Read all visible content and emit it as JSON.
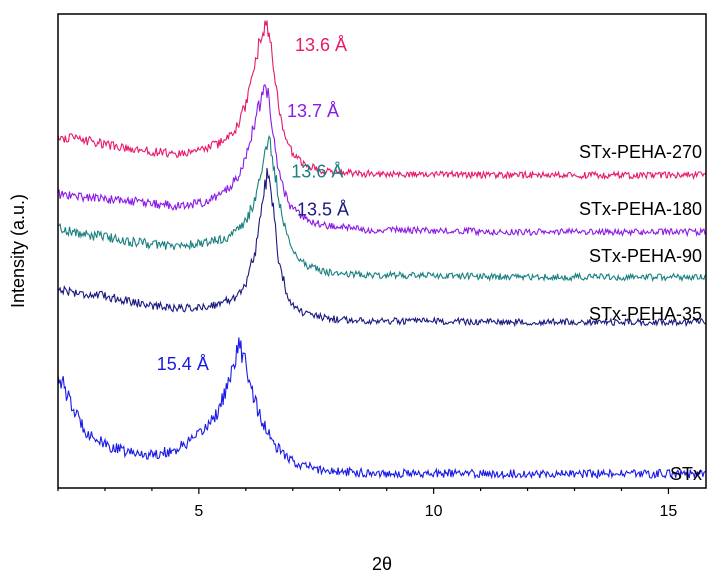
{
  "chart_data": {
    "type": "line",
    "title": "",
    "xlabel": "2θ",
    "ylabel": "Intensity (a.u.)",
    "xlim": [
      2.0,
      15.8
    ],
    "ylim": [
      0,
      100
    ],
    "x_ticks": [
      5,
      10,
      15
    ],
    "grid": false,
    "legend": "none",
    "series": [
      {
        "name": "STx",
        "color": "#1a1ae6",
        "baseline": 3.0,
        "noise": 0.9,
        "points": [
          [
            2.0,
            24
          ],
          [
            2.1,
            22
          ],
          [
            2.3,
            17
          ],
          [
            2.6,
            12
          ],
          [
            3.0,
            9
          ],
          [
            3.5,
            7.5
          ],
          [
            4.0,
            7
          ],
          [
            4.5,
            8
          ],
          [
            5.0,
            11
          ],
          [
            5.4,
            16
          ],
          [
            5.7,
            24
          ],
          [
            5.85,
            30
          ],
          [
            5.95,
            28
          ],
          [
            6.1,
            22
          ],
          [
            6.3,
            15
          ],
          [
            6.6,
            9
          ],
          [
            7.0,
            5.5
          ],
          [
            7.5,
            4
          ],
          [
            8.0,
            3.4
          ],
          [
            9.0,
            3.1
          ],
          [
            12.0,
            3.0
          ],
          [
            15.8,
            3.0
          ]
        ],
        "peak_label": "15.4 Å"
      },
      {
        "name": "STx-PEHA-35",
        "color": "#1a1a80",
        "baseline": 35.0,
        "noise": 0.7,
        "points": [
          [
            2.0,
            42
          ],
          [
            2.5,
            41
          ],
          [
            3.0,
            40.5
          ],
          [
            3.5,
            39.5
          ],
          [
            4.0,
            38.5
          ],
          [
            4.5,
            38
          ],
          [
            5.0,
            38
          ],
          [
            5.5,
            39
          ],
          [
            5.8,
            40.5
          ],
          [
            6.0,
            43
          ],
          [
            6.2,
            50
          ],
          [
            6.35,
            60
          ],
          [
            6.45,
            66
          ],
          [
            6.55,
            62
          ],
          [
            6.7,
            48
          ],
          [
            6.9,
            40
          ],
          [
            7.2,
            37
          ],
          [
            7.6,
            36
          ],
          [
            8.0,
            35.5
          ],
          [
            9.0,
            35.2
          ],
          [
            12.0,
            35.0
          ],
          [
            15.8,
            35.0
          ]
        ],
        "peak_label": "13.5 Å"
      },
      {
        "name": "STx-PEHA-90",
        "color": "#1a8080",
        "baseline": 44.5,
        "noise": 0.7,
        "points": [
          [
            2.0,
            55
          ],
          [
            2.5,
            53.5
          ],
          [
            3.0,
            53
          ],
          [
            3.5,
            52
          ],
          [
            4.0,
            51.5
          ],
          [
            4.5,
            51
          ],
          [
            5.0,
            51.5
          ],
          [
            5.5,
            52.5
          ],
          [
            5.8,
            54
          ],
          [
            6.0,
            56
          ],
          [
            6.2,
            61
          ],
          [
            6.35,
            68
          ],
          [
            6.5,
            73
          ],
          [
            6.6,
            68
          ],
          [
            6.75,
            58
          ],
          [
            7.0,
            50
          ],
          [
            7.3,
            47
          ],
          [
            7.7,
            45.5
          ],
          [
            8.5,
            45
          ],
          [
            12.0,
            44.5
          ],
          [
            15.8,
            44.5
          ]
        ],
        "peak_label": "13.6 Å"
      },
      {
        "name": "STx-PEHA-180",
        "color": "#8c1ae6",
        "baseline": 54.0,
        "noise": 0.7,
        "points": [
          [
            2.0,
            62
          ],
          [
            2.5,
            61.5
          ],
          [
            3.0,
            61
          ],
          [
            3.5,
            60.5
          ],
          [
            4.0,
            60
          ],
          [
            4.5,
            59.5
          ],
          [
            5.0,
            60
          ],
          [
            5.5,
            62
          ],
          [
            5.8,
            65
          ],
          [
            6.0,
            70
          ],
          [
            6.2,
            78
          ],
          [
            6.35,
            83
          ],
          [
            6.45,
            84
          ],
          [
            6.55,
            78
          ],
          [
            6.7,
            67
          ],
          [
            6.9,
            60
          ],
          [
            7.2,
            57
          ],
          [
            7.6,
            55.5
          ],
          [
            8.5,
            54.5
          ],
          [
            12.0,
            54.0
          ],
          [
            15.8,
            54.0
          ]
        ],
        "peak_label": "13.7 Å"
      },
      {
        "name": "STx-PEHA-270",
        "color": "#e6196b",
        "baseline": 66.0,
        "noise": 0.7,
        "points": [
          [
            2.0,
            74
          ],
          [
            2.5,
            73.5
          ],
          [
            3.0,
            72.5
          ],
          [
            3.5,
            71.5
          ],
          [
            4.0,
            71
          ],
          [
            4.5,
            70.5
          ],
          [
            5.0,
            71
          ],
          [
            5.5,
            73
          ],
          [
            5.8,
            76
          ],
          [
            6.0,
            81
          ],
          [
            6.2,
            90
          ],
          [
            6.35,
            96
          ],
          [
            6.45,
            98
          ],
          [
            6.55,
            92
          ],
          [
            6.7,
            80
          ],
          [
            6.9,
            72
          ],
          [
            7.2,
            68.5
          ],
          [
            7.6,
            67
          ],
          [
            8.5,
            66.3
          ],
          [
            12.0,
            66.0
          ],
          [
            15.8,
            66.0
          ]
        ],
        "peak_label": "13.6 Å"
      }
    ]
  }
}
